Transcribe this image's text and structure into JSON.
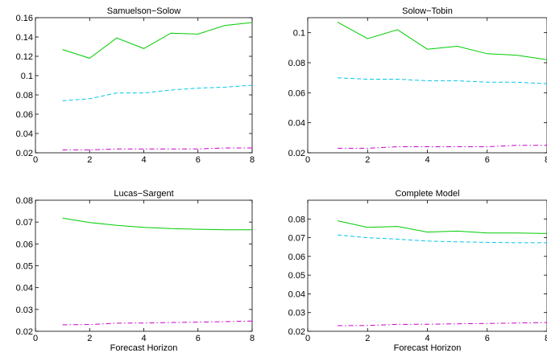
{
  "chart_data": [
    {
      "type": "line",
      "title": "Samuelson−Solow",
      "xlabel": "",
      "xlim": [
        0,
        8
      ],
      "ylim": [
        0.02,
        0.16
      ],
      "xticks": [
        "0",
        "2",
        "4",
        "6",
        "8"
      ],
      "yticks": [
        "0.02",
        "0.04",
        "0.06",
        "0.08",
        "0.1",
        "0.12",
        "0.14",
        "0.16"
      ],
      "x": [
        1,
        2,
        3,
        4,
        5,
        6,
        7,
        8
      ],
      "series": [
        {
          "color": "#00cc00",
          "style": "solid",
          "values": [
            0.127,
            0.118,
            0.139,
            0.128,
            0.144,
            0.143,
            0.152,
            0.155
          ]
        },
        {
          "color": "#00c8e8",
          "style": "dashed",
          "values": [
            0.074,
            0.076,
            0.082,
            0.082,
            0.085,
            0.087,
            0.088,
            0.09
          ]
        },
        {
          "color": "#cc00cc",
          "style": "dashdot",
          "values": [
            0.023,
            0.023,
            0.024,
            0.024,
            0.024,
            0.024,
            0.025,
            0.025
          ]
        }
      ]
    },
    {
      "type": "line",
      "title": "Solow−Tobin",
      "xlabel": "",
      "xlim": [
        0,
        8
      ],
      "ylim": [
        0.02,
        0.11
      ],
      "xticks": [
        "0",
        "2",
        "4",
        "6",
        "8"
      ],
      "yticks": [
        "0.02",
        "0.04",
        "0.06",
        "0.08",
        "0.1"
      ],
      "x": [
        1,
        2,
        3,
        4,
        5,
        6,
        7,
        8
      ],
      "series": [
        {
          "color": "#00cc00",
          "style": "solid",
          "values": [
            0.107,
            0.096,
            0.102,
            0.089,
            0.091,
            0.086,
            0.085,
            0.082
          ]
        },
        {
          "color": "#00c8e8",
          "style": "dashed",
          "values": [
            0.07,
            0.069,
            0.069,
            0.068,
            0.068,
            0.067,
            0.067,
            0.066
          ]
        },
        {
          "color": "#cc00cc",
          "style": "dashdot",
          "values": [
            0.023,
            0.023,
            0.024,
            0.024,
            0.024,
            0.024,
            0.025,
            0.025
          ]
        }
      ]
    },
    {
      "type": "line",
      "title": "Lucas−Sargent",
      "xlabel": "Forecast Horizon",
      "xlim": [
        0,
        8
      ],
      "ylim": [
        0.02,
        0.08
      ],
      "xticks": [
        "0",
        "2",
        "4",
        "6",
        "8"
      ],
      "yticks": [
        "0.02",
        "0.03",
        "0.04",
        "0.05",
        "0.06",
        "0.07",
        "0.08"
      ],
      "x": [
        1,
        2,
        3,
        4,
        5,
        6,
        7,
        8
      ],
      "series": [
        {
          "color": "#00cc00",
          "style": "solid",
          "values": [
            0.0718,
            0.0698,
            0.0685,
            0.0676,
            0.067,
            0.0667,
            0.0665,
            0.0665
          ]
        },
        {
          "color": "#cc00cc",
          "style": "dashdot",
          "values": [
            0.023,
            0.0231,
            0.0237,
            0.0238,
            0.024,
            0.0242,
            0.0244,
            0.0247
          ]
        }
      ]
    },
    {
      "type": "line",
      "title": "Complete Model",
      "xlabel": "Forecast Horizon",
      "xlim": [
        0,
        8
      ],
      "ylim": [
        0.02,
        0.09
      ],
      "xticks": [
        "0",
        "2",
        "4",
        "6",
        "8"
      ],
      "yticks": [
        "0.02",
        "0.03",
        "0.04",
        "0.05",
        "0.06",
        "0.07",
        "0.08"
      ],
      "x": [
        1,
        2,
        3,
        4,
        5,
        6,
        7,
        8
      ],
      "series": [
        {
          "color": "#00cc00",
          "style": "solid",
          "values": [
            0.079,
            0.0755,
            0.076,
            0.073,
            0.0735,
            0.0725,
            0.0725,
            0.0722
          ]
        },
        {
          "color": "#00c8e8",
          "style": "dashed",
          "values": [
            0.0715,
            0.07,
            0.0692,
            0.0682,
            0.0678,
            0.0675,
            0.0673,
            0.0673
          ]
        },
        {
          "color": "#cc00cc",
          "style": "dashdot",
          "values": [
            0.023,
            0.0231,
            0.0237,
            0.0238,
            0.024,
            0.0242,
            0.0244,
            0.0247
          ]
        }
      ]
    }
  ]
}
